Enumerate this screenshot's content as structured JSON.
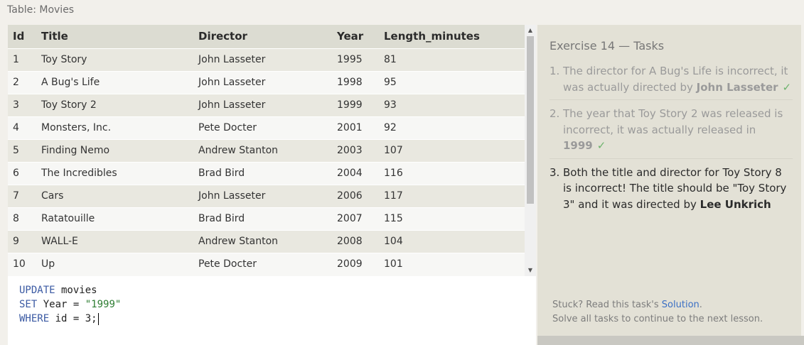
{
  "table_caption": "Table: Movies",
  "table": {
    "columns": [
      "Id",
      "Title",
      "Director",
      "Year",
      "Length_minutes"
    ],
    "rows": [
      [
        "1",
        "Toy Story",
        "John Lasseter",
        "1995",
        "81"
      ],
      [
        "2",
        "A Bug's Life",
        "John Lasseter",
        "1998",
        "95"
      ],
      [
        "3",
        "Toy Story 2",
        "John Lasseter",
        "1999",
        "93"
      ],
      [
        "4",
        "Monsters, Inc.",
        "Pete Docter",
        "2001",
        "92"
      ],
      [
        "5",
        "Finding Nemo",
        "Andrew Stanton",
        "2003",
        "107"
      ],
      [
        "6",
        "The Incredibles",
        "Brad Bird",
        "2004",
        "116"
      ],
      [
        "7",
        "Cars",
        "John Lasseter",
        "2006",
        "117"
      ],
      [
        "8",
        "Ratatouille",
        "Brad Bird",
        "2007",
        "115"
      ],
      [
        "9",
        "WALL-E",
        "Andrew Stanton",
        "2008",
        "104"
      ],
      [
        "10",
        "Up",
        "Pete Docter",
        "2009",
        "101"
      ]
    ]
  },
  "scrollbar": {
    "up_icon": "triangle-up",
    "down_icon": "triangle-down"
  },
  "editor": {
    "line1": {
      "kw": "UPDATE",
      "rest": " movies"
    },
    "line2": {
      "kw": "SET",
      "rest": " Year = ",
      "str": "\"1999\""
    },
    "line3": {
      "kw": "WHERE",
      "rest": " id = 3;"
    }
  },
  "panel": {
    "title": "Exercise 14 — Tasks",
    "tasks": [
      {
        "num": "1.",
        "text_before": "The director for A Bug's Life is incorrect, it was actually directed by ",
        "bold": "John Lasseter",
        "check": "✓"
      },
      {
        "num": "2.",
        "text_before": "The year that Toy Story 2 was released is incorrect, it was actually released in ",
        "bold": "1999",
        "check": "✓"
      },
      {
        "num": "3.",
        "text_before": "Both the title and director for Toy Story 8 is incorrect! The title should be \"Toy Story 3\" and it was directed by ",
        "bold": "Lee Unkrich"
      }
    ],
    "stuck_prefix": "Stuck? Read this task's ",
    "solution_link": "Solution",
    "stuck_suffix": ".",
    "continue_text": "Solve all tasks to continue to the next lesson."
  },
  "colors": {
    "keyword": "#3b5aa3",
    "string": "#2e7d32",
    "link": "#3a6fc4",
    "check": "#6db36d"
  }
}
